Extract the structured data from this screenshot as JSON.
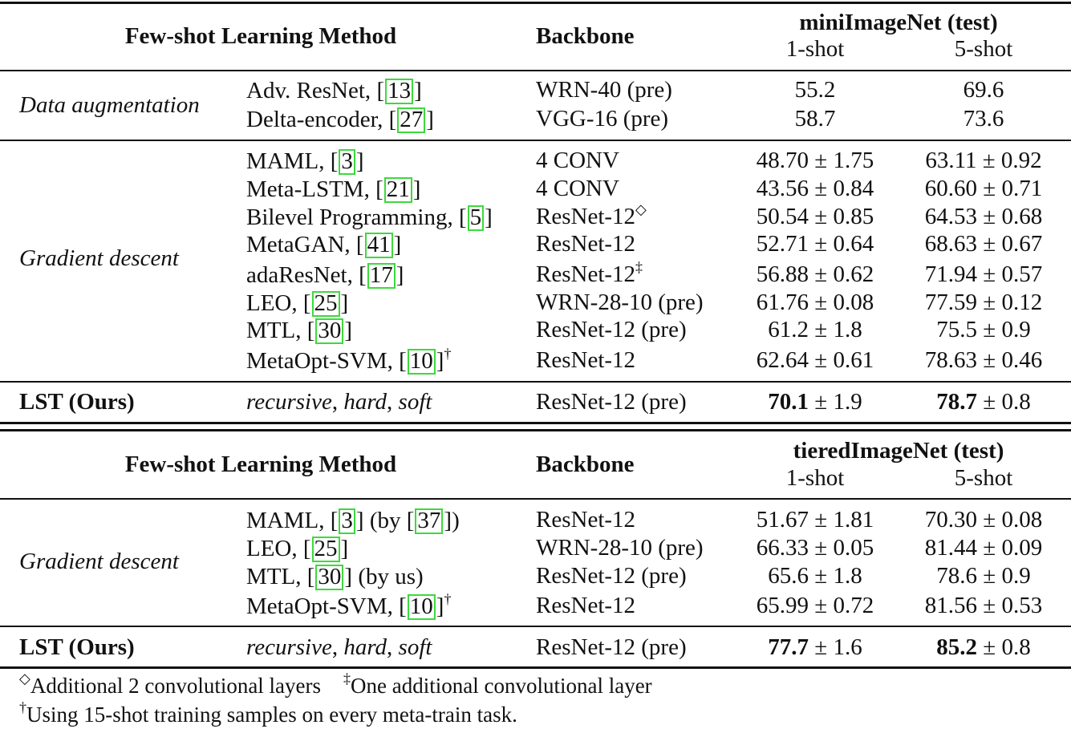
{
  "table1": {
    "header": {
      "method": "Few-shot Learning Method",
      "backbone": "Backbone",
      "dataset": "miniImageNet (test)",
      "shot1": "1-shot",
      "shot5": "5-shot"
    },
    "groups": [
      {
        "label": "Data augmentation",
        "rows": [
          {
            "method": "Adv. ResNet, ",
            "ref": "13",
            "mark": "",
            "backbone": "WRN-40 (pre)",
            "bmark": "",
            "s1": "55.2",
            "s5": "69.6"
          },
          {
            "method": "Delta-encoder, ",
            "ref": "27",
            "mark": "",
            "backbone": "VGG-16 (pre)",
            "bmark": "",
            "s1": "58.7",
            "s5": "73.6"
          }
        ]
      },
      {
        "label": "Gradient descent",
        "rows": [
          {
            "method": "MAML, ",
            "ref": "3",
            "mark": "",
            "backbone": "4 CONV",
            "bmark": "",
            "s1": "48.70 ± 1.75",
            "s5": "63.11 ± 0.92"
          },
          {
            "method": "Meta-LSTM, ",
            "ref": "21",
            "mark": "",
            "backbone": "4 CONV",
            "bmark": "",
            "s1": "43.56 ± 0.84",
            "s5": "60.60 ± 0.71"
          },
          {
            "method": "Bilevel Programming, ",
            "ref": "5",
            "mark": "",
            "backbone": "ResNet-12",
            "bmark": "◇",
            "s1": "50.54 ± 0.85",
            "s5": "64.53 ± 0.68"
          },
          {
            "method": "MetaGAN, ",
            "ref": "41",
            "mark": "",
            "backbone": "ResNet-12",
            "bmark": "",
            "s1": "52.71 ± 0.64",
            "s5": "68.63 ± 0.67"
          },
          {
            "method": "adaResNet, ",
            "ref": "17",
            "mark": "",
            "backbone": "ResNet-12",
            "bmark": "‡",
            "s1": "56.88 ± 0.62",
            "s5": "71.94 ± 0.57"
          },
          {
            "method": "LEO, ",
            "ref": "25",
            "mark": "",
            "backbone": "WRN-28-10 (pre)",
            "bmark": "",
            "s1": "61.76 ± 0.08",
            "s5": "77.59 ± 0.12"
          },
          {
            "method": "MTL, ",
            "ref": "30",
            "mark": "",
            "backbone": "ResNet-12 (pre)",
            "bmark": "",
            "s1": "61.2 ± 1.8",
            "s5": "75.5 ± 0.9"
          },
          {
            "method": "MetaOpt-SVM, ",
            "ref": "10",
            "mark": "†",
            "backbone": "ResNet-12",
            "bmark": "",
            "s1": "62.64 ± 0.61",
            "s5": "78.63 ± 0.46"
          }
        ]
      }
    ],
    "ours": {
      "label": "LST (Ours)",
      "method_parts": [
        "recursive",
        ", ",
        "hard",
        ", ",
        "soft"
      ],
      "backbone": "ResNet-12 (pre)",
      "s1_bold": "70.1",
      "s1_rest": " ± 1.9",
      "s5_bold": "78.7",
      "s5_rest": " ± 0.8"
    }
  },
  "table2": {
    "header": {
      "method": "Few-shot Learning Method",
      "backbone": "Backbone",
      "dataset": "tieredImageNet (test)",
      "shot1": "1-shot",
      "shot5": "5-shot"
    },
    "groups": [
      {
        "label": "Gradient descent",
        "rows": [
          {
            "method": "MAML, ",
            "ref": "3",
            "extra_pre": " (by ",
            "ref2": "37",
            "extra_post": ")",
            "mark": "",
            "backbone": "ResNet-12",
            "s1": "51.67 ± 1.81",
            "s5": "70.30 ± 0.08"
          },
          {
            "method": "LEO, ",
            "ref": "25",
            "extra_pre": "",
            "ref2": "",
            "extra_post": "",
            "mark": "",
            "backbone": "WRN-28-10 (pre)",
            "s1": "66.33 ± 0.05",
            "s5": "81.44 ± 0.09"
          },
          {
            "method": "MTL, ",
            "ref": "30",
            "extra_pre": " (by us)",
            "ref2": "",
            "extra_post": "",
            "mark": "",
            "backbone": "ResNet-12 (pre)",
            "s1": "65.6 ± 1.8",
            "s5": "78.6 ± 0.9"
          },
          {
            "method": "MetaOpt-SVM, ",
            "ref": "10",
            "extra_pre": "",
            "ref2": "",
            "extra_post": "",
            "mark": "†",
            "backbone": "ResNet-12",
            "s1": "65.99 ± 0.72",
            "s5": "81.56 ± 0.53"
          }
        ]
      }
    ],
    "ours": {
      "label": "LST (Ours)",
      "method_parts": [
        "recursive",
        ", ",
        "hard",
        ", ",
        "soft"
      ],
      "backbone": "ResNet-12 (pre)",
      "s1_bold": "77.7",
      "s1_rest": " ± 1.6",
      "s5_bold": "85.2",
      "s5_rest": " ± 0.8"
    }
  },
  "footnotes": {
    "diamond_mark": "◇",
    "diamond_text": "Additional 2 convolutional layers",
    "ddagger_mark": "‡",
    "ddagger_text": "One additional convolutional layer",
    "dagger_mark": "†",
    "dagger_text": "Using 15-shot training samples on every meta-train task."
  }
}
